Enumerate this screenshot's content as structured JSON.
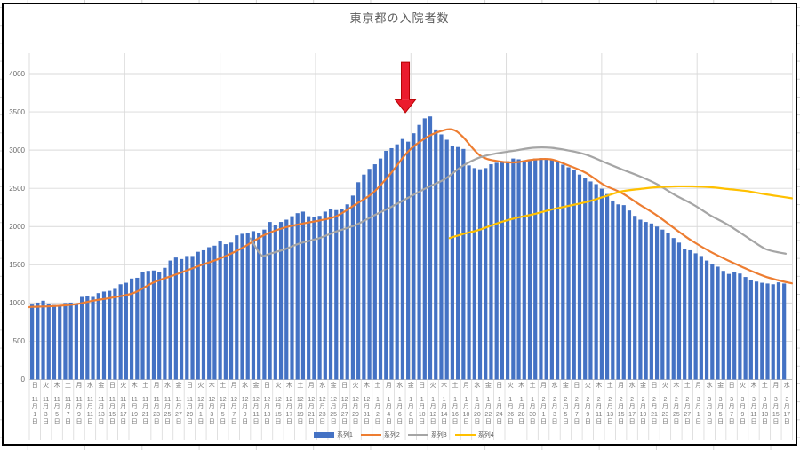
{
  "title": "東京都の入院者数",
  "colors": {
    "bar": "#4472C4",
    "line2": "#ED7D31",
    "line3": "#A5A5A5",
    "line4": "#FFC000",
    "grid": "#D9D9D9",
    "axis": "#BFBFBF",
    "text": "#595959",
    "tick_text": "#787878",
    "arrow_fill": "#EB1C2D",
    "arrow_stroke": "#B30000"
  },
  "y_axis": {
    "min": 0,
    "max": 4000,
    "step": 500,
    "ticks": [
      "0",
      "500",
      "1000",
      "1500",
      "2000",
      "2500",
      "3000",
      "3500",
      "4000"
    ]
  },
  "x_axis": {
    "labels": [
      {
        "w": "日",
        "m": "11",
        "d": "1"
      },
      {
        "w": "火",
        "m": "11",
        "d": "3"
      },
      {
        "w": "木",
        "m": "11",
        "d": "5"
      },
      {
        "w": "土",
        "m": "11",
        "d": "7"
      },
      {
        "w": "月",
        "m": "11",
        "d": "9"
      },
      {
        "w": "水",
        "m": "11",
        "d": "11"
      },
      {
        "w": "金",
        "m": "11",
        "d": "13"
      },
      {
        "w": "日",
        "m": "11",
        "d": "15"
      },
      {
        "w": "火",
        "m": "11",
        "d": "17"
      },
      {
        "w": "木",
        "m": "11",
        "d": "19"
      },
      {
        "w": "土",
        "m": "11",
        "d": "21"
      },
      {
        "w": "月",
        "m": "11",
        "d": "23"
      },
      {
        "w": "水",
        "m": "11",
        "d": "25"
      },
      {
        "w": "金",
        "m": "11",
        "d": "27"
      },
      {
        "w": "日",
        "m": "11",
        "d": "29"
      },
      {
        "w": "火",
        "m": "12",
        "d": "1"
      },
      {
        "w": "木",
        "m": "12",
        "d": "3"
      },
      {
        "w": "土",
        "m": "12",
        "d": "5"
      },
      {
        "w": "月",
        "m": "12",
        "d": "7"
      },
      {
        "w": "水",
        "m": "12",
        "d": "9"
      },
      {
        "w": "金",
        "m": "12",
        "d": "11"
      },
      {
        "w": "日",
        "m": "12",
        "d": "13"
      },
      {
        "w": "火",
        "m": "12",
        "d": "15"
      },
      {
        "w": "木",
        "m": "12",
        "d": "17"
      },
      {
        "w": "土",
        "m": "12",
        "d": "19"
      },
      {
        "w": "月",
        "m": "12",
        "d": "21"
      },
      {
        "w": "水",
        "m": "12",
        "d": "23"
      },
      {
        "w": "金",
        "m": "12",
        "d": "25"
      },
      {
        "w": "日",
        "m": "12",
        "d": "27"
      },
      {
        "w": "火",
        "m": "12",
        "d": "29"
      },
      {
        "w": "木",
        "m": "12",
        "d": "31"
      },
      {
        "w": "土",
        "m": "1",
        "d": "2"
      },
      {
        "w": "月",
        "m": "1",
        "d": "4"
      },
      {
        "w": "水",
        "m": "1",
        "d": "6"
      },
      {
        "w": "金",
        "m": "1",
        "d": "8"
      },
      {
        "w": "日",
        "m": "1",
        "d": "10"
      },
      {
        "w": "火",
        "m": "1",
        "d": "12"
      },
      {
        "w": "木",
        "m": "1",
        "d": "14"
      },
      {
        "w": "土",
        "m": "1",
        "d": "16"
      },
      {
        "w": "月",
        "m": "1",
        "d": "18"
      },
      {
        "w": "水",
        "m": "1",
        "d": "20"
      },
      {
        "w": "金",
        "m": "1",
        "d": "22"
      },
      {
        "w": "日",
        "m": "1",
        "d": "24"
      },
      {
        "w": "火",
        "m": "1",
        "d": "26"
      },
      {
        "w": "木",
        "m": "1",
        "d": "28"
      },
      {
        "w": "土",
        "m": "1",
        "d": "30"
      },
      {
        "w": "月",
        "m": "2",
        "d": "1"
      },
      {
        "w": "水",
        "m": "2",
        "d": "3"
      },
      {
        "w": "金",
        "m": "2",
        "d": "5"
      },
      {
        "w": "日",
        "m": "2",
        "d": "7"
      },
      {
        "w": "火",
        "m": "2",
        "d": "9"
      },
      {
        "w": "木",
        "m": "2",
        "d": "11"
      },
      {
        "w": "土",
        "m": "2",
        "d": "13"
      },
      {
        "w": "月",
        "m": "2",
        "d": "15"
      },
      {
        "w": "水",
        "m": "2",
        "d": "17"
      },
      {
        "w": "金",
        "m": "2",
        "d": "19"
      },
      {
        "w": "日",
        "m": "2",
        "d": "21"
      },
      {
        "w": "火",
        "m": "2",
        "d": "23"
      },
      {
        "w": "木",
        "m": "2",
        "d": "25"
      },
      {
        "w": "土",
        "m": "2",
        "d": "27"
      },
      {
        "w": "月",
        "m": "3",
        "d": "1"
      },
      {
        "w": "水",
        "m": "3",
        "d": "3"
      },
      {
        "w": "金",
        "m": "3",
        "d": "5"
      },
      {
        "w": "日",
        "m": "3",
        "d": "7"
      },
      {
        "w": "火",
        "m": "3",
        "d": "9"
      },
      {
        "w": "木",
        "m": "3",
        "d": "11"
      },
      {
        "w": "土",
        "m": "3",
        "d": "13"
      },
      {
        "w": "月",
        "m": "3",
        "d": "15"
      },
      {
        "w": "水",
        "m": "3",
        "d": "17"
      }
    ]
  },
  "legend": {
    "items": [
      {
        "label": "系列1",
        "type": "bar",
        "color": "#4472C4"
      },
      {
        "label": "系列2",
        "type": "line",
        "color": "#ED7D31"
      },
      {
        "label": "系列3",
        "type": "line",
        "color": "#A5A5A5"
      },
      {
        "label": "系列4",
        "type": "line",
        "color": "#FFC000"
      }
    ]
  },
  "chart_data": {
    "type": "bar",
    "title": "東京都の入院者数",
    "x_start_label": "11月1日",
    "x_end_label": "3月17日",
    "x_step_days": 1,
    "ylim": [
      0,
      4000
    ],
    "grid": true,
    "legend_position": "bottom",
    "series": [
      {
        "name": "系列1",
        "type": "bar",
        "color": "#4472C4",
        "values": [
          980,
          1005,
          1030,
          990,
          975,
          975,
          1000,
          1005,
          990,
          1080,
          1090,
          1080,
          1130,
          1150,
          1160,
          1185,
          1245,
          1265,
          1320,
          1330,
          1400,
          1420,
          1425,
          1405,
          1460,
          1555,
          1595,
          1575,
          1615,
          1615,
          1670,
          1690,
          1730,
          1750,
          1805,
          1770,
          1790,
          1885,
          1905,
          1920,
          1940,
          1920,
          1960,
          2060,
          2020,
          2060,
          2090,
          2135,
          2175,
          2195,
          2135,
          2125,
          2140,
          2195,
          2235,
          2215,
          2235,
          2290,
          2405,
          2580,
          2680,
          2755,
          2815,
          2890,
          2990,
          3025,
          3075,
          3145,
          3110,
          3220,
          3330,
          3415,
          3440,
          3270,
          3205,
          3135,
          3055,
          3040,
          3015,
          2800,
          2765,
          2750,
          2765,
          2815,
          2835,
          2840,
          2855,
          2890,
          2880,
          2865,
          2880,
          2890,
          2895,
          2885,
          2870,
          2850,
          2810,
          2775,
          2735,
          2680,
          2630,
          2590,
          2555,
          2495,
          2425,
          2340,
          2290,
          2280,
          2210,
          2140,
          2090,
          2060,
          2040,
          2000,
          1960,
          1920,
          1850,
          1790,
          1710,
          1690,
          1650,
          1615,
          1555,
          1510,
          1475,
          1420,
          1380,
          1400,
          1385,
          1340,
          1300,
          1280,
          1265,
          1255,
          1245,
          1270,
          1255
        ]
      },
      {
        "name": "系列2",
        "type": "line",
        "color": "#ED7D31",
        "points": [
          [
            -0.5,
            945
          ],
          [
            0,
            950
          ],
          [
            4,
            960
          ],
          [
            8,
            985
          ],
          [
            11,
            1030
          ],
          [
            14,
            1065
          ],
          [
            18.3,
            1130
          ],
          [
            22,
            1270
          ],
          [
            26.3,
            1380
          ],
          [
            30,
            1480
          ],
          [
            34.4,
            1595
          ],
          [
            38,
            1720
          ],
          [
            42,
            1890
          ],
          [
            45.6,
            1985
          ],
          [
            49,
            2040
          ],
          [
            52,
            2080
          ],
          [
            55,
            2135
          ],
          [
            58.5,
            2290
          ],
          [
            61.7,
            2445
          ],
          [
            64.9,
            2700
          ],
          [
            68.1,
            2990
          ],
          [
            71.3,
            3165
          ],
          [
            74,
            3250
          ],
          [
            76,
            3270
          ],
          [
            77.8,
            3180
          ],
          [
            81,
            2930
          ],
          [
            84.2,
            2855
          ],
          [
            87.4,
            2840
          ],
          [
            90.6,
            2875
          ],
          [
            93.8,
            2880
          ],
          [
            97,
            2800
          ],
          [
            100.2,
            2700
          ],
          [
            103.4,
            2545
          ],
          [
            106.6,
            2440
          ],
          [
            109.8,
            2290
          ],
          [
            113,
            2145
          ],
          [
            117.2,
            1920
          ],
          [
            119.5,
            1805
          ],
          [
            122.7,
            1670
          ],
          [
            125.9,
            1555
          ],
          [
            129.2,
            1445
          ],
          [
            132.4,
            1350
          ],
          [
            134.8,
            1300
          ],
          [
            137.4,
            1258
          ]
        ]
      },
      {
        "name": "系列3",
        "type": "line",
        "color": "#A5A5A5",
        "points": [
          [
            39.5,
            1845
          ],
          [
            41,
            1665
          ],
          [
            41.8,
            1615
          ],
          [
            43,
            1645
          ],
          [
            45.6,
            1700
          ],
          [
            48.4,
            1780
          ],
          [
            52,
            1850
          ],
          [
            55,
            1935
          ],
          [
            58.5,
            2020
          ],
          [
            61.7,
            2140
          ],
          [
            64.9,
            2255
          ],
          [
            68.1,
            2380
          ],
          [
            71.3,
            2505
          ],
          [
            74.6,
            2620
          ],
          [
            77.8,
            2790
          ],
          [
            81,
            2905
          ],
          [
            84.2,
            2960
          ],
          [
            87.4,
            2995
          ],
          [
            90.6,
            3030
          ],
          [
            93.8,
            3030
          ],
          [
            97,
            2995
          ],
          [
            100.2,
            2940
          ],
          [
            103.4,
            2845
          ],
          [
            106.6,
            2750
          ],
          [
            109.8,
            2660
          ],
          [
            113,
            2555
          ],
          [
            116.2,
            2415
          ],
          [
            119.5,
            2290
          ],
          [
            122.7,
            2145
          ],
          [
            125.9,
            2020
          ],
          [
            129.2,
            1865
          ],
          [
            132.4,
            1715
          ],
          [
            134.5,
            1670
          ],
          [
            136.3,
            1645
          ]
        ]
      },
      {
        "name": "系列4",
        "type": "line",
        "color": "#FFC000",
        "points": [
          [
            75.5,
            1850
          ],
          [
            77.8,
            1900
          ],
          [
            81,
            1960
          ],
          [
            84.2,
            2045
          ],
          [
            87.4,
            2110
          ],
          [
            90.6,
            2160
          ],
          [
            93.8,
            2220
          ],
          [
            97,
            2270
          ],
          [
            100.2,
            2320
          ],
          [
            103.4,
            2390
          ],
          [
            106.6,
            2460
          ],
          [
            109.8,
            2490
          ],
          [
            113,
            2515
          ],
          [
            116.2,
            2525
          ],
          [
            119.5,
            2525
          ],
          [
            122.7,
            2515
          ],
          [
            125.9,
            2490
          ],
          [
            129.2,
            2465
          ],
          [
            132.4,
            2425
          ],
          [
            135.6,
            2390
          ],
          [
            137.4,
            2370
          ]
        ]
      }
    ],
    "annotation": {
      "shape": "down-arrow",
      "day": 67.5,
      "top_value": 4150,
      "base_value": 3660,
      "tip_value": 3490
    }
  }
}
